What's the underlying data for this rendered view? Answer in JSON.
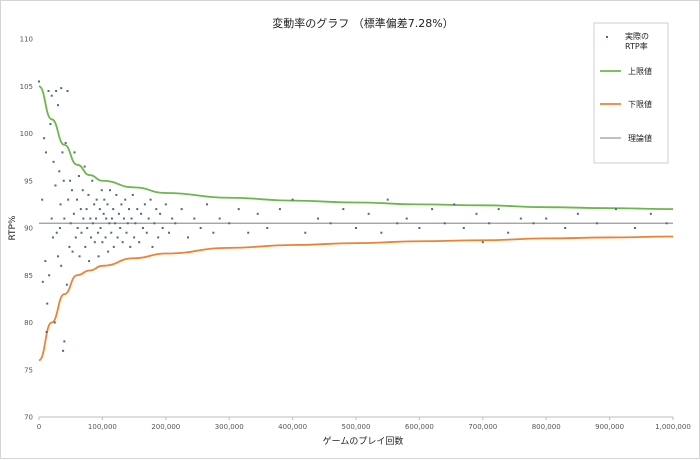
{
  "chart_data": {
    "type": "scatter",
    "title": "変動率のグラフ （標準偏差7.28%）",
    "xlabel": "ゲームのプレイ回数",
    "ylabel": "RTP%",
    "xlim": [
      0,
      1000000
    ],
    "ylim": [
      70,
      110
    ],
    "x_ticks": [
      0,
      100000,
      200000,
      300000,
      400000,
      500000,
      600000,
      700000,
      800000,
      900000,
      1000000
    ],
    "x_tick_labels": [
      "0",
      "100,000",
      "200,000",
      "300,000",
      "400,000",
      "500,000",
      "600,000",
      "700,000",
      "800,000",
      "900,000",
      "1,000,000"
    ],
    "y_ticks": [
      70,
      75,
      80,
      85,
      90,
      95,
      100,
      105,
      110
    ],
    "grid": false,
    "legend_position": "top-right",
    "colors": {
      "points": "#4e6a86",
      "upper": "#6bb84a",
      "lower": "#ed8232",
      "theory": "#9a9a9a"
    },
    "series": [
      {
        "name": "実際の RTP率",
        "kind": "scatter",
        "points": [
          [
            0,
            105.5
          ],
          [
            5000,
            93
          ],
          [
            6000,
            84.3
          ],
          [
            8000,
            99.5
          ],
          [
            10000,
            86.5
          ],
          [
            11000,
            98
          ],
          [
            12000,
            79
          ],
          [
            13000,
            82
          ],
          [
            15000,
            104.5
          ],
          [
            16000,
            85
          ],
          [
            18000,
            101
          ],
          [
            20000,
            104
          ],
          [
            20000,
            91
          ],
          [
            22000,
            89
          ],
          [
            23000,
            97
          ],
          [
            25000,
            80
          ],
          [
            26000,
            94.5
          ],
          [
            27000,
            104.5
          ],
          [
            28000,
            89.5
          ],
          [
            30000,
            103
          ],
          [
            30000,
            87
          ],
          [
            32000,
            96
          ],
          [
            33000,
            90
          ],
          [
            34000,
            92.5
          ],
          [
            35000,
            104.8
          ],
          [
            35000,
            86
          ],
          [
            37000,
            98
          ],
          [
            38000,
            77
          ],
          [
            39000,
            95
          ],
          [
            40000,
            91
          ],
          [
            40000,
            78
          ],
          [
            42000,
            99
          ],
          [
            44000,
            84
          ],
          [
            45000,
            104.5
          ],
          [
            46000,
            93
          ],
          [
            48000,
            88
          ],
          [
            49000,
            95
          ],
          [
            50000,
            90.5
          ],
          [
            52000,
            94
          ],
          [
            53000,
            87.5
          ],
          [
            55000,
            91.5
          ],
          [
            56000,
            98
          ],
          [
            58000,
            89
          ],
          [
            60000,
            93
          ],
          [
            61000,
            90
          ],
          [
            63000,
            95.5
          ],
          [
            64000,
            87
          ],
          [
            66000,
            92
          ],
          [
            67000,
            89.5
          ],
          [
            69000,
            94
          ],
          [
            70000,
            91
          ],
          [
            72000,
            96.5
          ],
          [
            73000,
            88
          ],
          [
            75000,
            92
          ],
          [
            76000,
            90
          ],
          [
            78000,
            93.5
          ],
          [
            79000,
            86.5
          ],
          [
            81000,
            91
          ],
          [
            82000,
            89
          ],
          [
            84000,
            95
          ],
          [
            85000,
            90.5
          ],
          [
            87000,
            92.5
          ],
          [
            88000,
            88.5
          ],
          [
            90000,
            91
          ],
          [
            91000,
            93
          ],
          [
            93000,
            89.5
          ],
          [
            94000,
            87
          ],
          [
            96000,
            92
          ],
          [
            97000,
            90
          ],
          [
            99000,
            94
          ],
          [
            100000,
            88.5
          ],
          [
            102000,
            91.5
          ],
          [
            103000,
            93
          ],
          [
            105000,
            89
          ],
          [
            106000,
            91
          ],
          [
            108000,
            92.5
          ],
          [
            109000,
            87.5
          ],
          [
            111000,
            90.5
          ],
          [
            112000,
            94
          ],
          [
            114000,
            89.5
          ],
          [
            115000,
            91
          ],
          [
            117000,
            92
          ],
          [
            118000,
            88
          ],
          [
            120000,
            90.5
          ],
          [
            122000,
            93.5
          ],
          [
            124000,
            89
          ],
          [
            126000,
            91.5
          ],
          [
            128000,
            90
          ],
          [
            130000,
            92.5
          ],
          [
            132000,
            88.5
          ],
          [
            134000,
            91
          ],
          [
            136000,
            93
          ],
          [
            138000,
            89.5
          ],
          [
            140000,
            90.5
          ],
          [
            142000,
            92
          ],
          [
            144000,
            88
          ],
          [
            146000,
            91
          ],
          [
            148000,
            93.5
          ],
          [
            150000,
            89
          ],
          [
            152000,
            90.5
          ],
          [
            155000,
            92
          ],
          [
            158000,
            88.5
          ],
          [
            161000,
            91.5
          ],
          [
            164000,
            90
          ],
          [
            167000,
            92.5
          ],
          [
            170000,
            89.5
          ],
          [
            173000,
            91
          ],
          [
            176000,
            93
          ],
          [
            179000,
            88
          ],
          [
            182000,
            90.5
          ],
          [
            185000,
            92
          ],
          [
            188000,
            89
          ],
          [
            191000,
            91.5
          ],
          [
            195000,
            90
          ],
          [
            200000,
            92.5
          ],
          [
            205000,
            89.5
          ],
          [
            210000,
            91
          ],
          [
            215000,
            90.5
          ],
          [
            225000,
            92
          ],
          [
            235000,
            89
          ],
          [
            245000,
            91
          ],
          [
            255000,
            90
          ],
          [
            265000,
            92.5
          ],
          [
            275000,
            89.5
          ],
          [
            285000,
            91
          ],
          [
            300000,
            90.5
          ],
          [
            315000,
            92
          ],
          [
            330000,
            89.5
          ],
          [
            345000,
            91.5
          ],
          [
            360000,
            90
          ],
          [
            380000,
            92
          ],
          [
            400000,
            93
          ],
          [
            420000,
            89.5
          ],
          [
            440000,
            91
          ],
          [
            460000,
            90.5
          ],
          [
            480000,
            92
          ],
          [
            500000,
            90
          ],
          [
            520000,
            91.5
          ],
          [
            540000,
            89.5
          ],
          [
            550000,
            93
          ],
          [
            565000,
            90.5
          ],
          [
            580000,
            91
          ],
          [
            600000,
            90
          ],
          [
            620000,
            92
          ],
          [
            640000,
            90.5
          ],
          [
            655000,
            92.5
          ],
          [
            670000,
            90
          ],
          [
            690000,
            91.5
          ],
          [
            700000,
            88.5
          ],
          [
            710000,
            90.5
          ],
          [
            725000,
            92
          ],
          [
            740000,
            89.5
          ],
          [
            760000,
            91
          ],
          [
            780000,
            90.5
          ],
          [
            800000,
            91
          ],
          [
            830000,
            90
          ],
          [
            850000,
            91.5
          ],
          [
            880000,
            90.5
          ],
          [
            910000,
            92
          ],
          [
            940000,
            90
          ],
          [
            965000,
            91.5
          ],
          [
            990000,
            90.5
          ]
        ]
      },
      {
        "name": "上限値",
        "kind": "line",
        "x": [
          0,
          20000,
          40000,
          60000,
          80000,
          100000,
          150000,
          200000,
          300000,
          400000,
          500000,
          600000,
          700000,
          800000,
          900000,
          1000000
        ],
        "values": [
          105,
          101.5,
          98.8,
          96.7,
          95.6,
          95,
          94.3,
          93.7,
          93.2,
          92.9,
          92.7,
          92.5,
          92.4,
          92.2,
          92.1,
          92
        ]
      },
      {
        "name": "下限値",
        "kind": "line",
        "x": [
          0,
          20000,
          40000,
          60000,
          80000,
          100000,
          150000,
          200000,
          300000,
          400000,
          500000,
          600000,
          700000,
          800000,
          900000,
          1000000
        ],
        "values": [
          76,
          80,
          83,
          85,
          85.5,
          86,
          86.8,
          87.3,
          87.9,
          88.2,
          88.4,
          88.6,
          88.7,
          88.9,
          89,
          89.1
        ]
      },
      {
        "name": "理論値",
        "kind": "line",
        "x": [
          0,
          1000000
        ],
        "values": [
          90.5,
          90.5
        ]
      }
    ]
  }
}
